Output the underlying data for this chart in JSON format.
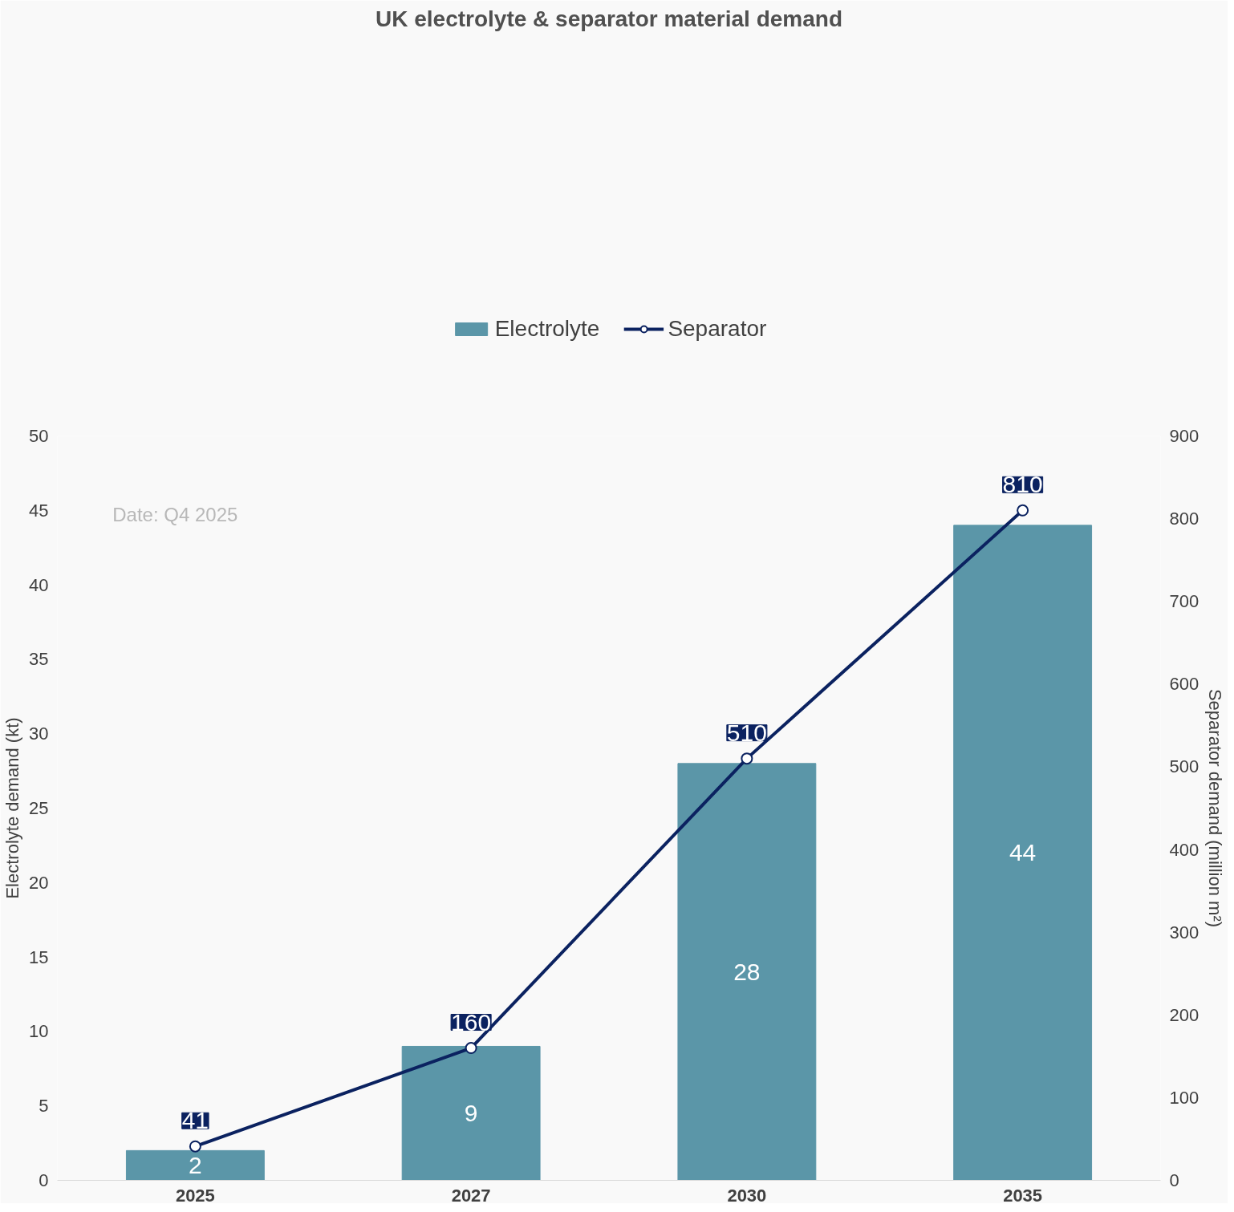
{
  "chart_data": {
    "type": "bar",
    "title": "UK electrolyte & separator material demand",
    "categories": [
      "2025",
      "2027",
      "2030",
      "2035"
    ],
    "series": [
      {
        "name": "Electrolyte",
        "color": "#5b96a8",
        "values": [
          2,
          9,
          28,
          44
        ]
      },
      {
        "name": "Separator",
        "type": "line",
        "axis": "y2",
        "color": "#0b2260",
        "values": [
          41,
          160,
          510,
          810
        ]
      }
    ],
    "ylabel": "Electrolyte demand (kt)",
    "y2label": "Separator demand (million m²)",
    "ylim": [
      0,
      50
    ],
    "yticks": [
      0,
      5,
      10,
      15,
      20,
      25,
      30,
      35,
      40,
      45,
      50
    ],
    "y2lim": [
      0,
      900
    ],
    "y2ticks": [
      0,
      100,
      200,
      300,
      400,
      500,
      600,
      700,
      800,
      900
    ],
    "legend": "top",
    "data_labels": true,
    "marker": "circle",
    "annotations": [
      "Date: Q4 2025"
    ]
  }
}
